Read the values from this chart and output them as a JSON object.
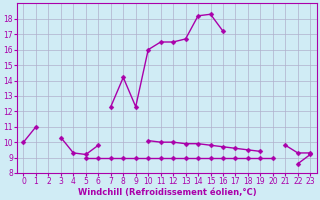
{
  "xlabel": "Windchill (Refroidissement éolien,°C)",
  "x_values": [
    0,
    1,
    2,
    3,
    4,
    5,
    6,
    7,
    8,
    9,
    10,
    11,
    12,
    13,
    14,
    15,
    16,
    17,
    18,
    19,
    20,
    21,
    22,
    23
  ],
  "series1": [
    10,
    11,
    null,
    null,
    null,
    null,
    null,
    12.3,
    14.2,
    12.3,
    16.0,
    16.5,
    16.5,
    16.7,
    18.2,
    18.3,
    17.2,
    null,
    null,
    null,
    null,
    null,
    null,
    null
  ],
  "series2": [
    null,
    null,
    null,
    10.3,
    9.3,
    9.2,
    9.8,
    null,
    null,
    null,
    10.1,
    10.0,
    10.0,
    9.9,
    9.9,
    9.8,
    9.7,
    9.6,
    9.5,
    9.4,
    null,
    9.8,
    9.3,
    9.3
  ],
  "series3": [
    null,
    null,
    null,
    null,
    null,
    9.0,
    9.0,
    9.0,
    9.0,
    9.0,
    9.0,
    9.0,
    9.0,
    9.0,
    9.0,
    9.0,
    9.0,
    9.0,
    9.0,
    9.0,
    9.0,
    null,
    8.6,
    9.2
  ],
  "line_color": "#aa00aa",
  "bg_color": "#d0ecf5",
  "grid_color": "#b0b0cc",
  "ylim": [
    8,
    19
  ],
  "xlim": [
    -0.5,
    23.5
  ],
  "yticks": [
    8,
    9,
    10,
    11,
    12,
    13,
    14,
    15,
    16,
    17,
    18
  ],
  "xticks": [
    0,
    1,
    2,
    3,
    4,
    5,
    6,
    7,
    8,
    9,
    10,
    11,
    12,
    13,
    14,
    15,
    16,
    17,
    18,
    19,
    20,
    21,
    22,
    23
  ],
  "marker": "D",
  "markersize": 2.5,
  "linewidth": 1.0,
  "tick_fontsize": 5.5,
  "xlabel_fontsize": 6.0
}
